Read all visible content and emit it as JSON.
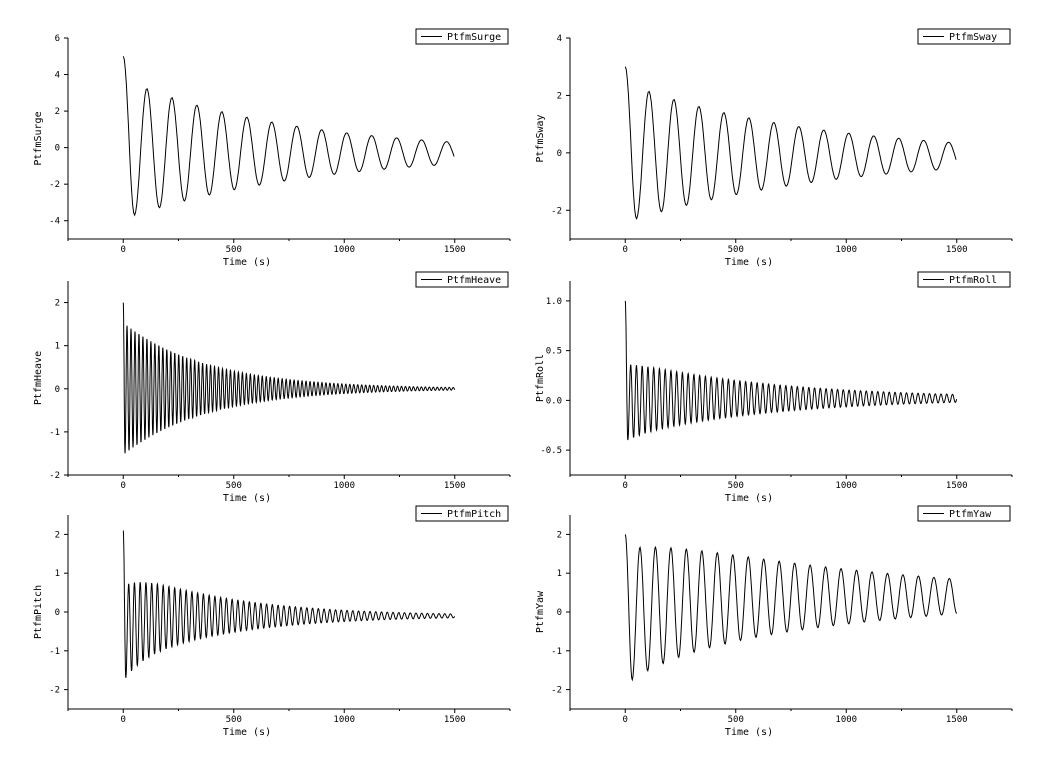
{
  "chart_data": [
    {
      "type": "line",
      "xlabel": "Time (s)",
      "ylabel": "PtfmSurge",
      "xlim": [
        -250,
        1750
      ],
      "ylim": [
        -5,
        6
      ],
      "xticks": [
        0,
        500,
        1000,
        1500
      ],
      "xtick_labels": [
        "0",
        "500",
        "1000",
        "1500"
      ],
      "yticks": [
        6,
        4,
        2,
        0,
        -2,
        -4
      ],
      "ytick_labels": [
        "6",
        "4",
        "2",
        "0",
        "-2",
        "-4"
      ],
      "legend": "top-right",
      "grid": false,
      "series": [
        {
          "name": "PtfmSurge",
          "x_range": [
            0,
            1500
          ],
          "initial_value": 5.0,
          "first_minimum": -3.7,
          "period": 113,
          "amplitude_start": 3.6,
          "amplitude_end": 0.6,
          "end_value": -0.3
        }
      ]
    },
    {
      "type": "line",
      "xlabel": "Time (s)",
      "ylabel": "PtfmSway",
      "xlim": [
        -250,
        1750
      ],
      "ylim": [
        -3,
        4
      ],
      "xticks": [
        0,
        500,
        1000,
        1500
      ],
      "xtick_labels": [
        "0",
        "500",
        "1000",
        "1500"
      ],
      "yticks": [
        4,
        2,
        0,
        -2
      ],
      "ytick_labels": [
        "4",
        "2",
        "0",
        "-2"
      ],
      "legend": "top-right",
      "grid": false,
      "series": [
        {
          "name": "PtfmSway",
          "x_range": [
            0,
            1500
          ],
          "initial_value": 3.0,
          "first_minimum": -2.3,
          "period": 113,
          "amplitude_start": 2.3,
          "amplitude_end": 0.45,
          "end_value": -0.1
        }
      ]
    },
    {
      "type": "line",
      "xlabel": "Time (s)",
      "ylabel": "PtfmHeave",
      "xlim": [
        -250,
        1750
      ],
      "ylim": [
        -2,
        2.5
      ],
      "xticks": [
        0,
        500,
        1000,
        1500
      ],
      "xtick_labels": [
        "0",
        "500",
        "1000",
        "1500"
      ],
      "yticks": [
        2,
        1,
        0,
        -1,
        -2
      ],
      "ytick_labels": [
        "2",
        "1",
        "0",
        "-1",
        "-2"
      ],
      "legend": "top-right",
      "grid": false,
      "series": [
        {
          "name": "PtfmHeave",
          "x_range": [
            0,
            1500
          ],
          "initial_value": 2.0,
          "first_minimum": -1.5,
          "period": 18,
          "amplitude_start": 1.5,
          "amplitude_end": 0.03,
          "end_value": 0.0
        }
      ]
    },
    {
      "type": "line",
      "xlabel": "Time (s)",
      "ylabel": "PtfmRoll",
      "xlim": [
        -250,
        1750
      ],
      "ylim": [
        -0.75,
        1.2
      ],
      "xticks": [
        0,
        500,
        1000,
        1500
      ],
      "xtick_labels": [
        "0",
        "500",
        "1000",
        "1500"
      ],
      "yticks": [
        1.0,
        0.5,
        0.0,
        -0.5
      ],
      "ytick_labels": [
        "1.0",
        "0.5",
        "0.0",
        "-0.5"
      ],
      "legend": "top-right",
      "grid": false,
      "series": [
        {
          "name": "PtfmRoll",
          "x_range": [
            0,
            1500
          ],
          "initial_value": 1.0,
          "first_minimum": -0.4,
          "period": 26,
          "amplitude_start": 0.38,
          "amplitude_end": 0.04,
          "end_value": 0.02
        }
      ]
    },
    {
      "type": "line",
      "xlabel": "Time (s)",
      "ylabel": "PtfmPitch",
      "xlim": [
        -250,
        1750
      ],
      "ylim": [
        -2.5,
        2.5
      ],
      "xticks": [
        0,
        500,
        1000,
        1500
      ],
      "xtick_labels": [
        "0",
        "500",
        "1000",
        "1500"
      ],
      "yticks": [
        2,
        1,
        0,
        -1,
        -2
      ],
      "ytick_labels": [
        "2",
        "1",
        "0",
        "-1",
        "-2"
      ],
      "legend": "top-right",
      "grid": false,
      "series": [
        {
          "name": "PtfmPitch",
          "x_range": [
            0,
            1500
          ],
          "initial_value": 2.1,
          "first_minimum": -1.7,
          "period": 26,
          "amplitude_start": 1.2,
          "amplitude_end": 0.05,
          "end_value": -0.1
        }
      ]
    },
    {
      "type": "line",
      "xlabel": "Time (s)",
      "ylabel": "PtfmYaw",
      "xlim": [
        -250,
        1750
      ],
      "ylim": [
        -2.5,
        2.5
      ],
      "xticks": [
        0,
        500,
        1000,
        1500
      ],
      "xtick_labels": [
        "0",
        "500",
        "1000",
        "1500"
      ],
      "yticks": [
        2,
        1,
        0,
        -1,
        -2
      ],
      "ytick_labels": [
        "2",
        "1",
        "0",
        "-1",
        "-2"
      ],
      "legend": "top-right",
      "grid": false,
      "series": [
        {
          "name": "PtfmYaw",
          "x_range": [
            0,
            1500
          ],
          "initial_value": 2.0,
          "first_minimum": -1.75,
          "period": 70,
          "amplitude_start": 1.7,
          "amplitude_end": 0.45,
          "end_value": 0.4
        }
      ]
    }
  ]
}
